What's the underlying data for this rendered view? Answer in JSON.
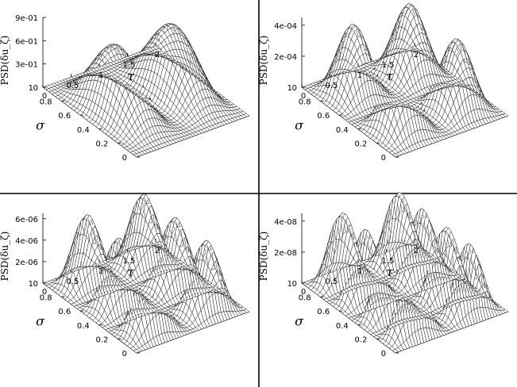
{
  "chart_data": [
    {
      "type": "surface",
      "panel": "top-left",
      "x": {
        "label": "σ",
        "range": [
          0,
          1
        ],
        "ticks": [
          "0",
          "0.2",
          "0.4",
          "0.6",
          "0.8",
          "1"
        ]
      },
      "y": {
        "label": "τ",
        "range": [
          0,
          2
        ],
        "ticks": [
          "0",
          "0.5",
          "1",
          "1.5",
          "2"
        ]
      },
      "z": {
        "label": "PSD(δu_ζ)",
        "range": [
          0,
          0.9
        ],
        "ticks": [
          "0",
          "3e-01",
          "6e-01",
          "9e-01"
        ]
      },
      "modes": {
        "sigma_halfwaves": 1,
        "tau_peaks": 2
      },
      "amplitude": 0.85
    },
    {
      "type": "surface",
      "panel": "top-right",
      "x": {
        "label": "σ",
        "range": [
          0,
          1
        ],
        "ticks": [
          "0",
          "0.2",
          "0.4",
          "0.6",
          "0.8",
          "1"
        ]
      },
      "y": {
        "label": "τ",
        "range": [
          0,
          2
        ],
        "ticks": [
          "0",
          "0.5",
          "1",
          "1.5",
          "2"
        ]
      },
      "z": {
        "label": "PSD(δu_ζ)",
        "range": [
          0,
          0.00045
        ],
        "ticks": [
          "0",
          "2e-04",
          "4e-04"
        ]
      },
      "modes": {
        "sigma_halfwaves": 2,
        "tau_peaks": 2
      },
      "amplitude": 0.00045
    },
    {
      "type": "surface",
      "panel": "bottom-left",
      "x": {
        "label": "σ",
        "range": [
          0,
          1
        ],
        "ticks": [
          "0",
          "0.2",
          "0.4",
          "0.6",
          "0.8",
          "1"
        ]
      },
      "y": {
        "label": "τ",
        "range": [
          0,
          2
        ],
        "ticks": [
          "0",
          "0.5",
          "1",
          "1.5",
          "2"
        ]
      },
      "z": {
        "label": "PSD(δu_ζ)",
        "range": [
          0,
          6.5e-06
        ],
        "ticks": [
          "0",
          "2e-06",
          "4e-06",
          "6e-06"
        ]
      },
      "modes": {
        "sigma_halfwaves": 3,
        "tau_peaks": 2
      },
      "amplitude": 6.5e-06
    },
    {
      "type": "surface",
      "panel": "bottom-right",
      "x": {
        "label": "σ",
        "range": [
          0,
          1
        ],
        "ticks": [
          "0",
          "0.2",
          "0.4",
          "0.6",
          "0.8",
          "1"
        ]
      },
      "y": {
        "label": "τ",
        "range": [
          0,
          2
        ],
        "ticks": [
          "0",
          "0.5",
          "1",
          "1.5",
          "2"
        ]
      },
      "z": {
        "label": "PSD(δu_ζ)",
        "range": [
          0,
          4.5e-08
        ],
        "ticks": [
          "0",
          "2e-08",
          "4e-08"
        ]
      },
      "modes": {
        "sigma_halfwaves": 4,
        "tau_peaks": 2
      },
      "amplitude": 4.5e-08
    }
  ]
}
